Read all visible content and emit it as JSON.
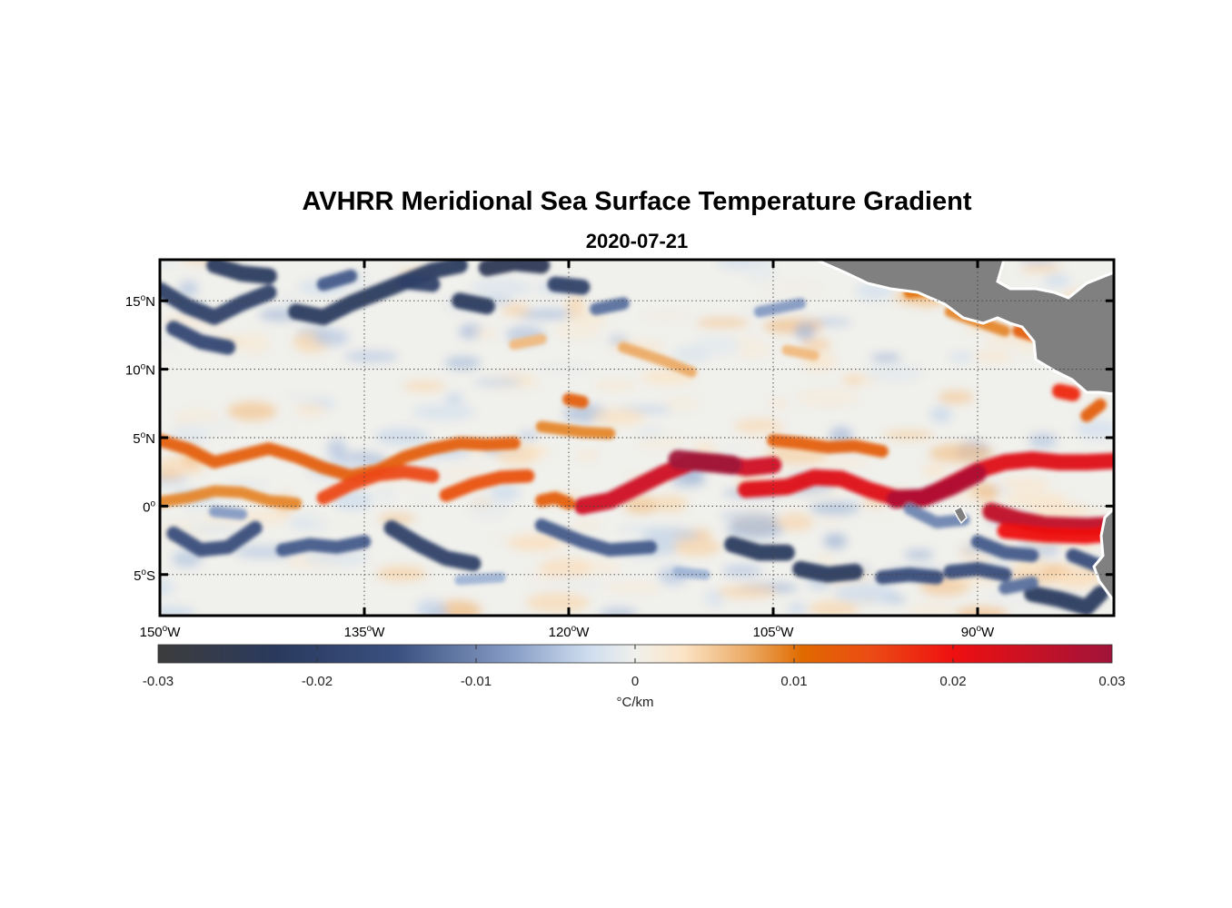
{
  "figure": {
    "title": "AVHRR Meridional Sea Surface Temperature Gradient",
    "subtitle": "2020-07-21"
  },
  "map": {
    "lon_range": [
      -150,
      -80
    ],
    "lat_range": [
      -8,
      18
    ],
    "lon_ticks": [
      {
        "value": -150,
        "label": "150",
        "suffix": "W"
      },
      {
        "value": -135,
        "label": "135",
        "suffix": "W"
      },
      {
        "value": -120,
        "label": "120",
        "suffix": "W"
      },
      {
        "value": -105,
        "label": "105",
        "suffix": "W"
      },
      {
        "value": -90,
        "label": "90",
        "suffix": "W"
      }
    ],
    "lat_ticks": [
      {
        "value": 15,
        "label": "15",
        "suffix": "N"
      },
      {
        "value": 10,
        "label": "10",
        "suffix": "N"
      },
      {
        "value": 5,
        "label": "5",
        "suffix": "N"
      },
      {
        "value": 0,
        "label": "0",
        "suffix": ""
      },
      {
        "value": -5,
        "label": "5",
        "suffix": "S"
      }
    ],
    "grid": "dotted",
    "land_color": "#808080",
    "bands": [
      {
        "points": [
          [
            -150,
            4.8
          ],
          [
            -148,
            4.2
          ],
          [
            -146,
            3.2
          ],
          [
            -144,
            3.7
          ],
          [
            -142,
            4.2
          ],
          [
            -140,
            3.6
          ],
          [
            -138,
            2.8
          ],
          [
            -136,
            2.2
          ],
          [
            -134,
            2.6
          ],
          [
            -132,
            3.6
          ],
          [
            -130,
            4.2
          ],
          [
            -128,
            4.6
          ],
          [
            -126,
            4.5
          ],
          [
            -124,
            4.6
          ]
        ],
        "value": 0.012
      },
      {
        "points": [
          [
            -150,
            0.3
          ],
          [
            -148,
            0.6
          ],
          [
            -146,
            1.1
          ],
          [
            -144,
            1.0
          ],
          [
            -142,
            0.4
          ],
          [
            -140,
            0.2
          ]
        ],
        "value": 0.009
      },
      {
        "points": [
          [
            -138,
            0.6
          ],
          [
            -136,
            1.6
          ],
          [
            -134,
            2.3
          ],
          [
            -132,
            2.5
          ],
          [
            -130,
            2.2
          ]
        ],
        "value": 0.015
      },
      {
        "points": [
          [
            -129,
            0.8
          ],
          [
            -127,
            1.6
          ],
          [
            -125,
            2.1
          ],
          [
            -123,
            2.2
          ]
        ],
        "value": 0.014
      },
      {
        "points": [
          [
            -119,
            0.0
          ],
          [
            -117,
            0.4
          ],
          [
            -115,
            1.4
          ],
          [
            -113,
            2.4
          ],
          [
            -111,
            3.2
          ],
          [
            -109,
            3.2
          ],
          [
            -107,
            2.8
          ],
          [
            -105,
            3.0
          ]
        ],
        "value": 0.024
      },
      {
        "points": [
          [
            -112,
            3.4
          ],
          [
            -110,
            3.2
          ],
          [
            -108,
            3.0
          ]
        ],
        "value": 0.03
      },
      {
        "points": [
          [
            -107,
            1.2
          ],
          [
            -104,
            1.4
          ],
          [
            -102,
            2.1
          ],
          [
            -100,
            2.0
          ],
          [
            -98,
            1.2
          ],
          [
            -96,
            0.6
          ],
          [
            -94,
            0.6
          ],
          [
            -92,
            1.6
          ],
          [
            -90,
            2.6
          ],
          [
            -88,
            3.2
          ],
          [
            -86,
            3.4
          ],
          [
            -84,
            3.2
          ],
          [
            -82,
            3.2
          ],
          [
            -80,
            3.3
          ]
        ],
        "value": 0.022
      },
      {
        "points": [
          [
            -96,
            0.5
          ],
          [
            -94,
            0.6
          ],
          [
            -92,
            1.4
          ],
          [
            -90,
            2.4
          ]
        ],
        "value": 0.028
      },
      {
        "points": [
          [
            -105,
            4.8
          ],
          [
            -103,
            4.6
          ],
          [
            -101,
            4.3
          ],
          [
            -99,
            4.4
          ],
          [
            -97,
            4.0
          ]
        ],
        "value": 0.012
      },
      {
        "points": [
          [
            -89,
            -0.4
          ],
          [
            -87,
            -1.0
          ],
          [
            -85,
            -1.4
          ],
          [
            -82,
            -1.5
          ],
          [
            -80,
            -1.4
          ]
        ],
        "value": 0.026
      },
      {
        "points": [
          [
            -88,
            -1.8
          ],
          [
            -85,
            -2.1
          ],
          [
            -82,
            -2.2
          ],
          [
            -80,
            -2.0
          ]
        ],
        "value": 0.02
      },
      {
        "points": [
          [
            -120,
            0.2
          ],
          [
            -121,
            0.6
          ],
          [
            -122,
            0.4
          ]
        ],
        "value": 0.012
      },
      {
        "points": [
          [
            -120,
            7.8
          ],
          [
            -119,
            7.6
          ]
        ],
        "value": 0.012
      },
      {
        "points": [
          [
            -84,
            8.4
          ],
          [
            -83,
            8.2
          ]
        ],
        "value": 0.018
      },
      {
        "points": [
          [
            -87,
            12.8
          ],
          [
            -86,
            12.5
          ]
        ],
        "value": 0.012
      },
      {
        "points": [
          [
            -82,
            6.6
          ],
          [
            -81,
            7.4
          ]
        ],
        "value": 0.012
      },
      {
        "points": [
          [
            -92,
            14.2
          ],
          [
            -90,
            13.5
          ],
          [
            -88,
            12.8
          ]
        ],
        "value": 0.009
      },
      {
        "points": [
          [
            -95,
            15.6
          ],
          [
            -93,
            15.8
          ]
        ],
        "value": 0.01
      },
      {
        "points": [
          [
            -116,
            11.6
          ],
          [
            -113,
            10.6
          ],
          [
            -111,
            9.8
          ]
        ],
        "value": 0.007
      },
      {
        "points": [
          [
            -124,
            11.8
          ],
          [
            -122,
            12.2
          ]
        ],
        "value": 0.006
      },
      {
        "points": [
          [
            -104,
            11.4
          ],
          [
            -102,
            11.0
          ]
        ],
        "value": 0.006
      },
      {
        "points": [
          [
            -122,
            5.8
          ],
          [
            -119,
            5.4
          ],
          [
            -117,
            5.3
          ]
        ],
        "value": 0.009
      },
      {
        "points": [
          [
            -150,
            15.8
          ],
          [
            -148,
            14.6
          ],
          [
            -146,
            13.8
          ],
          [
            -144,
            14.8
          ],
          [
            -142,
            15.6
          ]
        ],
        "value": -0.02
      },
      {
        "points": [
          [
            -149,
            13.0
          ],
          [
            -147,
            12.0
          ],
          [
            -145,
            11.6
          ]
        ],
        "value": -0.018
      },
      {
        "points": [
          [
            -146,
            17.6
          ],
          [
            -144,
            17.0
          ],
          [
            -142,
            16.8
          ]
        ],
        "value": -0.022
      },
      {
        "points": [
          [
            -140,
            14.2
          ],
          [
            -138,
            13.8
          ],
          [
            -136,
            14.8
          ],
          [
            -134,
            15.6
          ],
          [
            -132,
            16.4
          ],
          [
            -130,
            17.2
          ],
          [
            -128,
            17.6
          ]
        ],
        "value": -0.022
      },
      {
        "points": [
          [
            -128,
            15.0
          ],
          [
            -126,
            14.6
          ]
        ],
        "value": -0.022
      },
      {
        "points": [
          [
            -126,
            17.4
          ],
          [
            -124,
            17.8
          ],
          [
            -122,
            17.6
          ]
        ],
        "value": -0.024
      },
      {
        "points": [
          [
            -132,
            16.4
          ],
          [
            -130,
            16.2
          ]
        ],
        "value": -0.02
      },
      {
        "points": [
          [
            -121,
            16.2
          ],
          [
            -119,
            16.0
          ]
        ],
        "value": -0.02
      },
      {
        "points": [
          [
            -118,
            14.4
          ],
          [
            -116,
            14.8
          ]
        ],
        "value": -0.012
      },
      {
        "points": [
          [
            -106,
            14.2
          ],
          [
            -103,
            14.8
          ]
        ],
        "value": -0.008
      },
      {
        "points": [
          [
            -138,
            16.2
          ],
          [
            -136,
            16.8
          ]
        ],
        "value": -0.014
      },
      {
        "points": [
          [
            -149,
            -2.0
          ],
          [
            -147,
            -3.2
          ],
          [
            -145,
            -3.0
          ],
          [
            -143,
            -1.6
          ]
        ],
        "value": -0.016
      },
      {
        "points": [
          [
            -146,
            -0.4
          ],
          [
            -144,
            -0.6
          ]
        ],
        "value": -0.008
      },
      {
        "points": [
          [
            -141,
            -3.2
          ],
          [
            -139,
            -2.8
          ],
          [
            -137,
            -3.0
          ],
          [
            -135,
            -2.6
          ]
        ],
        "value": -0.014
      },
      {
        "points": [
          [
            -133,
            -1.6
          ],
          [
            -131,
            -2.8
          ],
          [
            -129,
            -3.8
          ],
          [
            -127,
            -4.2
          ]
        ],
        "value": -0.02
      },
      {
        "points": [
          [
            -122,
            -1.4
          ],
          [
            -119,
            -2.6
          ],
          [
            -117,
            -3.2
          ],
          [
            -114,
            -3.0
          ]
        ],
        "value": -0.014
      },
      {
        "points": [
          [
            -108,
            -2.8
          ],
          [
            -106,
            -3.4
          ],
          [
            -104,
            -3.4
          ]
        ],
        "value": -0.022
      },
      {
        "points": [
          [
            -103,
            -4.6
          ],
          [
            -101,
            -5.0
          ],
          [
            -99,
            -4.8
          ]
        ],
        "value": -0.022
      },
      {
        "points": [
          [
            -97,
            -5.2
          ],
          [
            -95,
            -5.0
          ],
          [
            -93,
            -5.2
          ]
        ],
        "value": -0.016
      },
      {
        "points": [
          [
            -92,
            -4.8
          ],
          [
            -90,
            -4.6
          ],
          [
            -88,
            -5.0
          ]
        ],
        "value": -0.016
      },
      {
        "points": [
          [
            -90,
            -2.6
          ],
          [
            -88,
            -3.4
          ],
          [
            -86,
            -3.6
          ]
        ],
        "value": -0.014
      },
      {
        "points": [
          [
            -86,
            -6.4
          ],
          [
            -84,
            -6.8
          ],
          [
            -82,
            -7.4
          ],
          [
            -81,
            -6.4
          ]
        ],
        "value": -0.022
      },
      {
        "points": [
          [
            -95,
            -0.2
          ],
          [
            -93,
            -1.2
          ],
          [
            -91,
            -1.0
          ]
        ],
        "value": -0.01
      },
      {
        "points": [
          [
            -83,
            -3.6
          ],
          [
            -81,
            -4.4
          ]
        ],
        "value": -0.016
      },
      {
        "points": [
          [
            -88,
            -6.0
          ],
          [
            -86,
            -5.6
          ]
        ],
        "value": -0.012
      },
      {
        "points": [
          [
            -128,
            -5.4
          ],
          [
            -125,
            -5.2
          ]
        ],
        "value": -0.006
      },
      {
        "points": [
          [
            -112,
            -4.8
          ],
          [
            -110,
            -5.0
          ]
        ],
        "value": -0.006
      }
    ]
  },
  "colorbar": {
    "min": -0.03,
    "max": 0.03,
    "ticks": [
      {
        "value": -0.03,
        "label": "-0.03"
      },
      {
        "value": -0.02,
        "label": "-0.02"
      },
      {
        "value": -0.01,
        "label": "-0.01"
      },
      {
        "value": 0,
        "label": "0"
      },
      {
        "value": 0.01,
        "label": "0.01"
      },
      {
        "value": 0.02,
        "label": "0.02"
      },
      {
        "value": 0.03,
        "label": "0.03"
      }
    ],
    "unit_label": "°C/km",
    "colors": [
      {
        "value": -0.03,
        "color": "#3c3c3c"
      },
      {
        "value": -0.0225,
        "color": "#2a3a5e"
      },
      {
        "value": -0.015,
        "color": "#3a5080"
      },
      {
        "value": -0.0075,
        "color": "#8aa0c8"
      },
      {
        "value": -0.003,
        "color": "#cddcee"
      },
      {
        "value": 0,
        "color": "#f0f0ec"
      },
      {
        "value": 0.003,
        "color": "#fbe4c6"
      },
      {
        "value": 0.0075,
        "color": "#eaa45a"
      },
      {
        "value": 0.0105,
        "color": "#e06a00"
      },
      {
        "value": 0.015,
        "color": "#ec4a14"
      },
      {
        "value": 0.02,
        "color": "#ee1010"
      },
      {
        "value": 0.03,
        "color": "#a0133a"
      }
    ]
  }
}
